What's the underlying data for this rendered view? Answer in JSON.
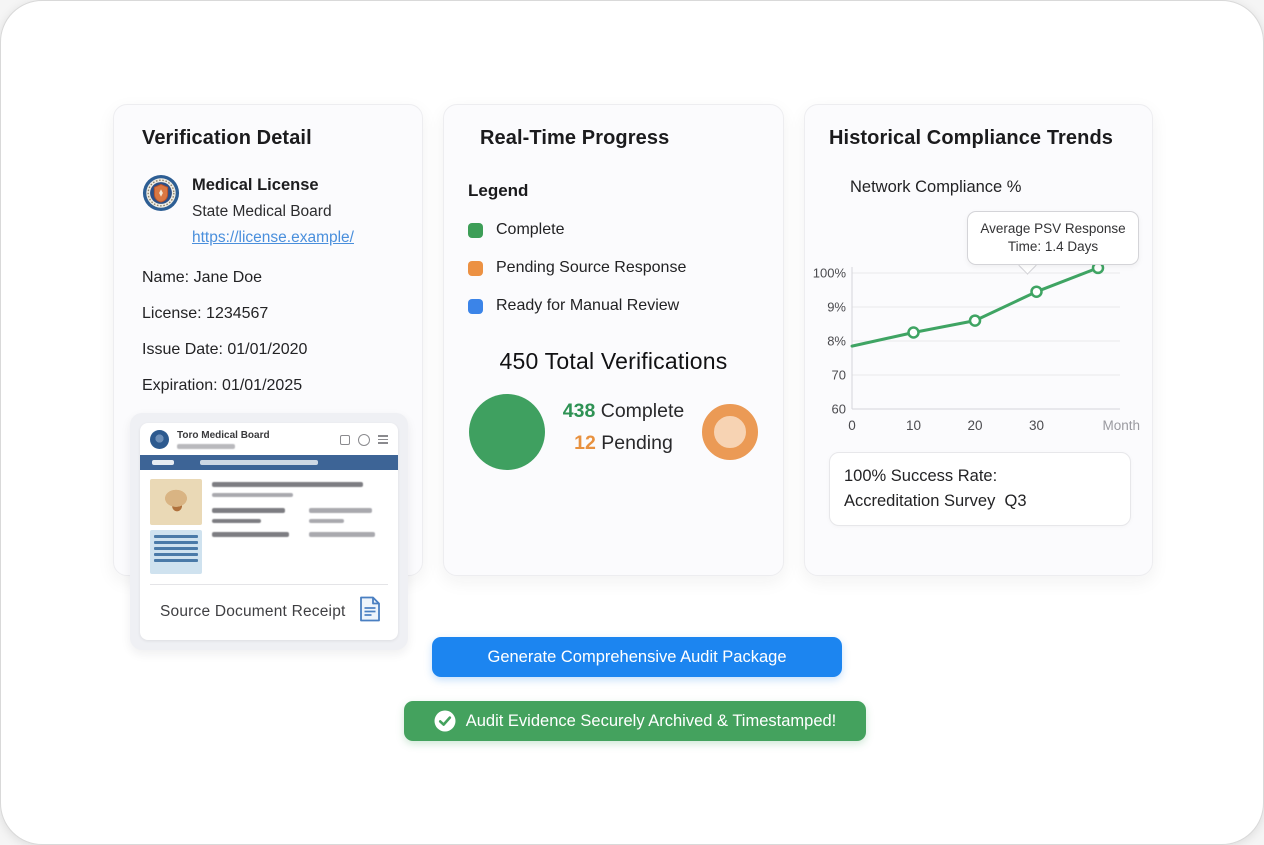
{
  "card_verification": {
    "title": "Verification Detail",
    "credential": {
      "name": "Medical License",
      "issuer": "State Medical Board",
      "url": "https://license.example/"
    },
    "details": [
      "Name: Jane Doe",
      "License: 1234567",
      "Issue Date: 01/01/2020",
      "Expiration: 01/01/2025"
    ],
    "document": {
      "site_title": "Toro Medical Board",
      "receipt_label": "Source Document Receipt"
    }
  },
  "card_progress": {
    "title": "Real-Time Progress",
    "legend_title": "Legend",
    "legend": [
      {
        "label": "Complete",
        "color": "#3d9e57"
      },
      {
        "label": "Pending Source Response",
        "color": "#ec9143"
      },
      {
        "label": "Ready for Manual Review",
        "color": "#3b84e8"
      }
    ],
    "total_label": "450 Total Verifications",
    "complete_count": "438",
    "complete_label": "Complete",
    "pending_count": "12",
    "pending_label": "Pending"
  },
  "card_trends": {
    "title": "Historical Compliance Trends",
    "subtitle": "Network Compliance %",
    "tooltip_text": "Average PSV Response Time: 1.4 Days",
    "success_line1": "100% Success Rate:",
    "success_line2": "Accreditation Survey  Q3"
  },
  "chart_data": {
    "type": "line",
    "title": "Network Compliance %",
    "y_ticks": [
      "60",
      "70",
      "8%",
      "9%",
      "100%"
    ],
    "x_ticks": [
      0,
      10,
      20,
      30
    ],
    "x_axis_label": "Month",
    "grid": true,
    "annotation": "Average PSV Response Time: 1.4 Days",
    "series": [
      {
        "name": "Network Compliance %",
        "color": "#3fa463",
        "x": [
          0,
          10,
          20,
          30,
          40
        ],
        "y_tick_units": [
          1.85,
          2.25,
          2.6,
          3.45,
          4.15
        ],
        "marker_on_first_point": false
      }
    ]
  },
  "actions": {
    "generate_button": "Generate Comprehensive Audit Package",
    "archive_banner": "Audit Evidence Securely Archived & Timestamped!"
  },
  "colors": {
    "primary_button_blue": "#1c85f0",
    "banner_green": "#44a25e",
    "progress_circle_green": "#3fa060",
    "donut_ring_orange": "#eb9a55",
    "donut_fill_orange": "#f7d3b3",
    "complete_number_green": "#2e9254",
    "pending_number_orange": "#e8913f",
    "chart_line_green": "#3fa463",
    "link_blue": "#4a8fdc",
    "doc_navbar_blue": "#3d6496"
  }
}
